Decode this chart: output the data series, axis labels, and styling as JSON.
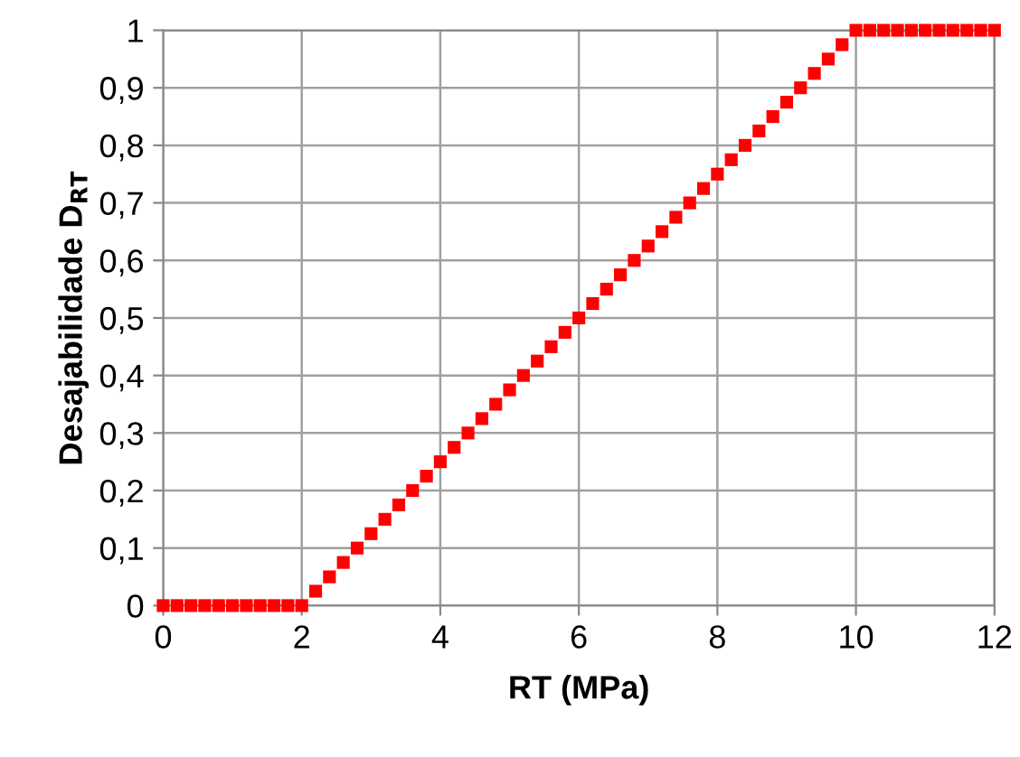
{
  "chart_data": {
    "type": "scatter",
    "xlabel": "RT (MPa)",
    "ylabel": "Desajabilidade D$_{RT}$",
    "x": [
      0,
      0.2,
      0.4,
      0.6,
      0.8,
      1,
      1.2,
      1.4,
      1.6,
      1.8,
      2,
      2.2,
      2.4,
      2.6,
      2.8,
      3,
      3.2,
      3.4,
      3.6,
      3.8,
      4,
      4.2,
      4.4,
      4.6,
      4.8,
      5,
      5.2,
      5.4,
      5.6,
      5.8,
      6,
      6.2,
      6.4,
      6.6,
      6.8,
      7,
      7.2,
      7.4,
      7.6,
      7.8,
      8,
      8.2,
      8.4,
      8.6,
      8.8,
      9,
      9.2,
      9.4,
      9.6,
      9.8,
      10,
      10.2,
      10.4,
      10.6,
      10.8,
      11,
      11.2,
      11.4,
      11.6,
      11.8,
      12
    ],
    "series": [
      {
        "color": "#ff0000",
        "values": [
          0,
          0,
          0,
          0,
          0,
          0,
          0,
          0,
          0,
          0,
          0,
          0.025,
          0.05,
          0.075,
          0.1,
          0.125,
          0.15,
          0.175,
          0.2,
          0.225,
          0.25,
          0.275,
          0.3,
          0.325,
          0.35,
          0.375,
          0.4,
          0.425,
          0.45,
          0.475,
          0.5,
          0.525,
          0.55,
          0.575,
          0.6,
          0.625,
          0.65,
          0.675,
          0.7,
          0.725,
          0.75,
          0.775,
          0.8,
          0.825,
          0.85,
          0.875,
          0.9,
          0.925,
          0.95,
          0.975,
          1,
          1,
          1,
          1,
          1,
          1,
          1,
          1,
          1,
          1,
          1
        ]
      }
    ],
    "xlim": [
      0,
      12
    ],
    "xticks": [
      0,
      2,
      4,
      6,
      8,
      10,
      12
    ],
    "ylim": [
      0,
      1
    ],
    "yticks": [
      0,
      {
        "value": 0.1,
        "label": "0,1"
      },
      {
        "value": 0.2,
        "label": "0,2"
      },
      {
        "value": 0.3,
        "label": "0,3"
      },
      {
        "value": 0.4,
        "label": "0,4"
      },
      {
        "value": 0.5,
        "label": "0,5"
      },
      {
        "value": 0.6,
        "label": "0,6"
      },
      {
        "value": 0.7,
        "label": "0,7"
      },
      {
        "value": 0.8,
        "label": "0,8"
      },
      {
        "value": 0.9,
        "label": "0,9"
      },
      1
    ],
    "grid": true,
    "marker": "square",
    "legend": false
  }
}
